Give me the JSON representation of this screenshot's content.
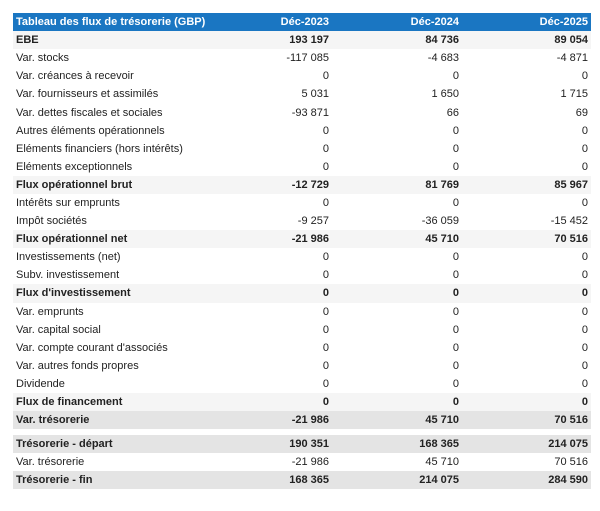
{
  "header": {
    "title": "Tableau des flux de trésorerie (GBP)",
    "columns": [
      "Déc-2023",
      "Déc-2024",
      "Déc-2025"
    ]
  },
  "rows": [
    {
      "label": "EBE",
      "values": [
        "193 197",
        "84 736",
        "89 054"
      ],
      "style": "bold"
    },
    {
      "label": "Var. stocks",
      "values": [
        "-117 085",
        "-4 683",
        "-4 871"
      ],
      "style": ""
    },
    {
      "label": "Var. créances à recevoir",
      "values": [
        "0",
        "0",
        "0"
      ],
      "style": ""
    },
    {
      "label": "Var. fournisseurs et assimilés",
      "values": [
        "5 031",
        "1 650",
        "1 715"
      ],
      "style": ""
    },
    {
      "label": "Var. dettes fiscales et sociales",
      "values": [
        "-93 871",
        "66",
        "69"
      ],
      "style": ""
    },
    {
      "label": "Autres éléments opérationnels",
      "values": [
        "0",
        "0",
        "0"
      ],
      "style": ""
    },
    {
      "label": "Eléments financiers (hors intérêts)",
      "values": [
        "0",
        "0",
        "0"
      ],
      "style": ""
    },
    {
      "label": "Eléments exceptionnels",
      "values": [
        "0",
        "0",
        "0"
      ],
      "style": ""
    },
    {
      "label": "Flux opérationnel brut",
      "values": [
        "-12 729",
        "81 769",
        "85 967"
      ],
      "style": "bold"
    },
    {
      "label": "Intérêts sur emprunts",
      "values": [
        "0",
        "0",
        "0"
      ],
      "style": ""
    },
    {
      "label": "Impôt sociétés",
      "values": [
        "-9 257",
        "-36 059",
        "-15 452"
      ],
      "style": ""
    },
    {
      "label": "Flux opérationnel net",
      "values": [
        "-21 986",
        "45 710",
        "70 516"
      ],
      "style": "bold"
    },
    {
      "label": "Investissements (net)",
      "values": [
        "0",
        "0",
        "0"
      ],
      "style": ""
    },
    {
      "label": "Subv. investissement",
      "values": [
        "0",
        "0",
        "0"
      ],
      "style": ""
    },
    {
      "label": "Flux d'investissement",
      "values": [
        "0",
        "0",
        "0"
      ],
      "style": "bold"
    },
    {
      "label": "Var. emprunts",
      "values": [
        "0",
        "0",
        "0"
      ],
      "style": ""
    },
    {
      "label": "Var. capital social",
      "values": [
        "0",
        "0",
        "0"
      ],
      "style": ""
    },
    {
      "label": "Var. compte courant d'associés",
      "values": [
        "0",
        "0",
        "0"
      ],
      "style": ""
    },
    {
      "label": "Var. autres fonds propres",
      "values": [
        "0",
        "0",
        "0"
      ],
      "style": ""
    },
    {
      "label": "Dividende",
      "values": [
        "0",
        "0",
        "0"
      ],
      "style": ""
    },
    {
      "label": "Flux de financement",
      "values": [
        "0",
        "0",
        "0"
      ],
      "style": "bold"
    },
    {
      "label": "Var. trésorerie",
      "values": [
        "-21 986",
        "45 710",
        "70 516"
      ],
      "style": "total"
    }
  ],
  "summary_rows": [
    {
      "label": "Trésorerie - départ",
      "values": [
        "190 351",
        "168 365",
        "214 075"
      ],
      "style": "total"
    },
    {
      "label": "Var. trésorerie",
      "values": [
        "-21 986",
        "45 710",
        "70 516"
      ],
      "style": ""
    },
    {
      "label": "Trésorerie - fin",
      "values": [
        "168 365",
        "214 075",
        "284 590"
      ],
      "style": "total"
    }
  ],
  "colors": {
    "header_bg": "#1a76c2",
    "subtotal_bg": "#f5f5f5",
    "total_bg": "#e4e4e4"
  }
}
